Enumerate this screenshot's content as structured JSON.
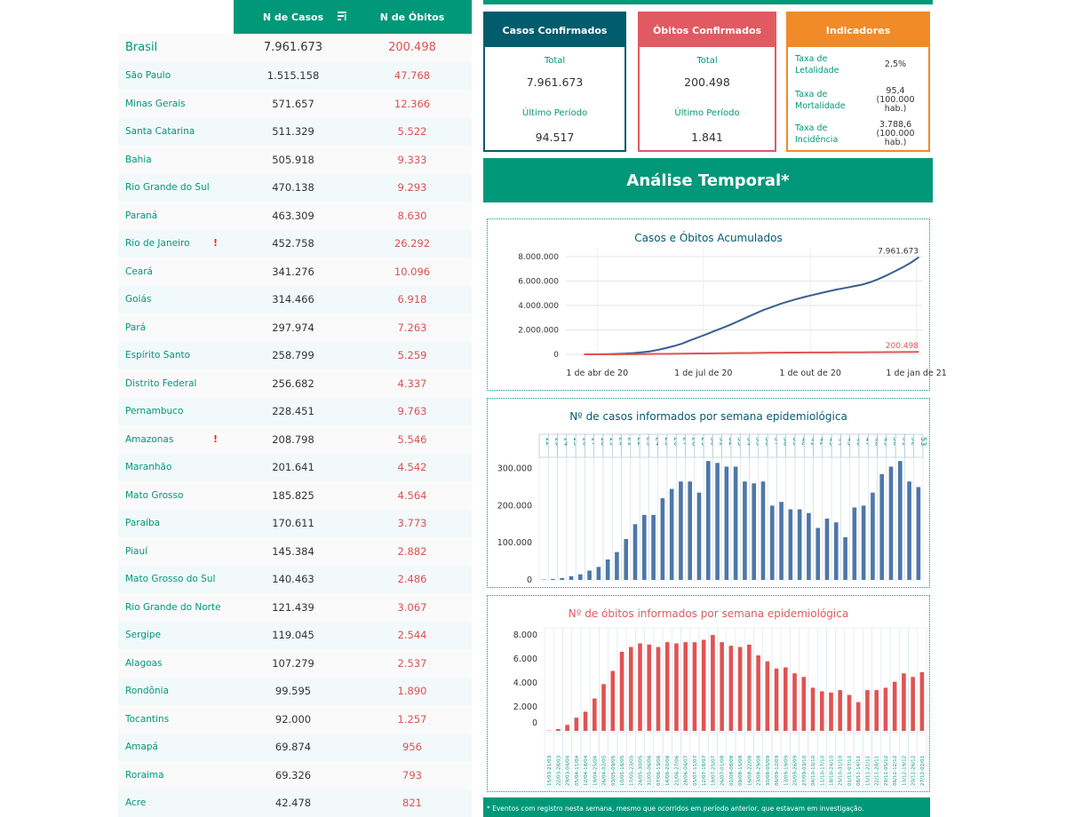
{
  "table": {
    "header_casos": "N de Casos",
    "header_obitos": "N de Óbitos",
    "rows": [
      {
        "name": "Brasil",
        "casos": "7.961.673",
        "obitos": "200.498",
        "warn": ""
      },
      {
        "name": "São Paulo",
        "casos": "1.515.158",
        "obitos": "47.768",
        "warn": ""
      },
      {
        "name": "Minas Gerais",
        "casos": "571.657",
        "obitos": "12.366",
        "warn": ""
      },
      {
        "name": "Santa Catarina",
        "casos": "511.329",
        "obitos": "5.522",
        "warn": ""
      },
      {
        "name": "Bahia",
        "casos": "505.918",
        "obitos": "9.333",
        "warn": ""
      },
      {
        "name": "Rio Grande do Sul",
        "casos": "470.138",
        "obitos": "9.293",
        "warn": ""
      },
      {
        "name": "Paraná",
        "casos": "463.309",
        "obitos": "8.630",
        "warn": ""
      },
      {
        "name": "Rio de Janeiro",
        "casos": "452.758",
        "obitos": "26.292",
        "warn": "!"
      },
      {
        "name": "Ceará",
        "casos": "341.276",
        "obitos": "10.096",
        "warn": ""
      },
      {
        "name": "Goiás",
        "casos": "314.466",
        "obitos": "6.918",
        "warn": ""
      },
      {
        "name": "Pará",
        "casos": "297.974",
        "obitos": "7.263",
        "warn": ""
      },
      {
        "name": "Espírito Santo",
        "casos": "258.799",
        "obitos": "5.259",
        "warn": ""
      },
      {
        "name": "Distrito Federal",
        "casos": "256.682",
        "obitos": "4.337",
        "warn": ""
      },
      {
        "name": "Pernambuco",
        "casos": "228.451",
        "obitos": "9.763",
        "warn": ""
      },
      {
        "name": "Amazonas",
        "casos": "208.798",
        "obitos": "5.546",
        "warn": "!"
      },
      {
        "name": "Maranhão",
        "casos": "201.641",
        "obitos": "4.542",
        "warn": ""
      },
      {
        "name": "Mato Grosso",
        "casos": "185.825",
        "obitos": "4.564",
        "warn": ""
      },
      {
        "name": "Paraíba",
        "casos": "170.611",
        "obitos": "3.773",
        "warn": ""
      },
      {
        "name": "Piauí",
        "casos": "145.384",
        "obitos": "2.882",
        "warn": ""
      },
      {
        "name": "Mato Grosso do Sul",
        "casos": "140.463",
        "obitos": "2.486",
        "warn": ""
      },
      {
        "name": "Rio Grande do Norte",
        "casos": "121.439",
        "obitos": "3.067",
        "warn": ""
      },
      {
        "name": "Sergipe",
        "casos": "119.045",
        "obitos": "2.544",
        "warn": ""
      },
      {
        "name": "Alagoas",
        "casos": "107.279",
        "obitos": "2.537",
        "warn": ""
      },
      {
        "name": "Rondônia",
        "casos": "99.595",
        "obitos": "1.890",
        "warn": ""
      },
      {
        "name": "Tocantins",
        "casos": "92.000",
        "obitos": "1.257",
        "warn": ""
      },
      {
        "name": "Amapá",
        "casos": "69.874",
        "obitos": "956",
        "warn": ""
      },
      {
        "name": "Roraima",
        "casos": "69.326",
        "obitos": "793",
        "warn": ""
      },
      {
        "name": "Acre",
        "casos": "42.478",
        "obitos": "821",
        "warn": ""
      }
    ]
  },
  "cards": {
    "casos": {
      "title": "Casos Confirmados",
      "total_label": "Total",
      "total": "7.961.673",
      "periodo_label": "Último Período",
      "periodo": "94.517"
    },
    "obitos": {
      "title": "Óbitos Confirmados",
      "total_label": "Total",
      "total": "200.498",
      "periodo_label": "Último Período",
      "periodo": "1.841"
    },
    "indicadores": {
      "title": "Indicadores",
      "rows": [
        {
          "label": "Taxa de Letalidade",
          "value": "2,5%"
        },
        {
          "label": "Taxa de Mortalidade",
          "value": "95,4 (100.000 hab.)"
        },
        {
          "label": "Taxa de Incidência",
          "value": "3.788,6 (100.000 hab.)"
        }
      ]
    }
  },
  "temporal_title": "Análise Temporal*",
  "footnote": "* Eventos com registro nesta semana, mesmo que ocorridos em período anterior, que estavam em investigação.",
  "colors": {
    "teal": "#009879",
    "navy": "#015c6e",
    "red": "#e15a61",
    "orange": "#f08b28",
    "blue_line": "#3a5d91",
    "bar_blue": "#4e77a8",
    "bar_red": "#e05353"
  },
  "chart_data": [
    {
      "type": "line",
      "title": "Casos e Óbitos Acumulados",
      "x_ticks": [
        "1 de abr de 20",
        "1 de jul de 20",
        "1 de out de 20",
        "1 de jan de 21"
      ],
      "y_ticks": [
        "8.000.000",
        "6.000.000",
        "4.000.000",
        "2.000.000",
        "0"
      ],
      "ylim": [
        0,
        8000000
      ],
      "x_weeks": [
        12,
        13,
        14,
        15,
        16,
        17,
        18,
        19,
        20,
        21,
        22,
        23,
        24,
        25,
        26,
        27,
        28,
        29,
        30,
        31,
        32,
        33,
        34,
        35,
        36,
        37,
        38,
        39,
        40,
        41,
        42,
        43,
        44,
        45,
        46,
        47,
        48,
        49,
        50,
        51,
        52,
        53
      ],
      "series": [
        {
          "values": [
            1500,
            4000,
            9000,
            20000,
            36000,
            60000,
            100000,
            160000,
            240000,
            360000,
            510000,
            680000,
            880000,
            1150000,
            1400000,
            1650000,
            1920000,
            2180000,
            2450000,
            2750000,
            3050000,
            3350000,
            3640000,
            3880000,
            4120000,
            4330000,
            4520000,
            4700000,
            4860000,
            5020000,
            5170000,
            5320000,
            5440000,
            5570000,
            5700000,
            5900000,
            6150000,
            6450000,
            6780000,
            7120000,
            7500000,
            7961673
          ],
          "end_label": "7.961.673"
        },
        {
          "values": [
            30,
            150,
            600,
            1800,
            4500,
            8000,
            12000,
            18000,
            25000,
            33000,
            40000,
            47000,
            55000,
            62000,
            69000,
            76000,
            83000,
            91000,
            99000,
            106000,
            113000,
            120000,
            127000,
            133000,
            138000,
            143000,
            147000,
            150000,
            153000,
            155500,
            157500,
            160000,
            161500,
            163000,
            165000,
            169000,
            173000,
            178000,
            183000,
            188000,
            195000,
            200498
          ],
          "end_label": "200.498"
        }
      ]
    },
    {
      "type": "bar",
      "title": "Nº de casos informados por semana epidemiológica",
      "categories": [
        "12",
        "13",
        "14",
        "15",
        "16",
        "17",
        "18",
        "19",
        "20",
        "21",
        "22",
        "23",
        "24",
        "25",
        "26",
        "27",
        "28",
        "29",
        "30",
        "31",
        "32",
        "33",
        "34",
        "35",
        "36",
        "37",
        "38",
        "39",
        "40",
        "41",
        "42",
        "43",
        "44",
        "45",
        "46",
        "47",
        "48",
        "49",
        "50",
        "51",
        "52",
        "53"
      ],
      "values": [
        1000,
        2500,
        5000,
        10000,
        15000,
        25000,
        35000,
        55000,
        75000,
        110000,
        150000,
        175000,
        175000,
        220000,
        245000,
        265000,
        265000,
        235000,
        320000,
        315000,
        305000,
        305000,
        265000,
        260000,
        265000,
        200000,
        210000,
        190000,
        190000,
        180000,
        140000,
        165000,
        155000,
        115000,
        195000,
        200000,
        235000,
        285000,
        305000,
        320000,
        265000,
        250000
      ],
      "y_ticks": [
        "300.000",
        "200.000",
        "100.000",
        "0"
      ],
      "ylim": [
        0,
        330000
      ]
    },
    {
      "type": "bar",
      "title": "Nº de óbitos informados por semana epidemiológica",
      "categories": [
        "15/03-21/03",
        "22/03-28/03",
        "29/03-04/04",
        "05/04-11/04",
        "12/04-18/04",
        "19/04-25/04",
        "26/04-02/05",
        "03/05-09/05",
        "10/05-16/05",
        "17/05-23/05",
        "24/05-30/05",
        "31/05-06/06",
        "07/06-13/06",
        "14/06-20/06",
        "21/06-27/06",
        "28/06-04/07",
        "05/07-11/07",
        "12/07-18/07",
        "19/07-25/07",
        "26/07-01/08",
        "02/08-08/08",
        "09/08-15/08",
        "16/08-22/08",
        "23/08-29/08",
        "30/08-05/09",
        "06/09-12/09",
        "13/09-19/09",
        "20/09-26/09",
        "27/09-03/10",
        "04/10-10/10",
        "11/10-17/10",
        "18/10-24/10",
        "25/10-31/10",
        "01/11-07/11",
        "08/11-14/11",
        "15/11-21/11",
        "22/11-28/11",
        "29/11-05/12",
        "06/12-12/12",
        "13/12-19/12",
        "20/12-26/12",
        "27/12-02/01"
      ],
      "values": [
        25,
        150,
        500,
        1100,
        1600,
        2700,
        3900,
        5000,
        6600,
        7000,
        7300,
        7200,
        7000,
        7400,
        7300,
        7400,
        7400,
        7600,
        8000,
        7400,
        7100,
        7000,
        7200,
        6300,
        5800,
        5200,
        5300,
        4800,
        4500,
        3600,
        3300,
        3200,
        3400,
        3000,
        2400,
        3400,
        3400,
        3600,
        4100,
        4800,
        4500,
        4900
      ],
      "y_ticks": [
        "8.000",
        "6.000",
        "4.000",
        "2.000",
        "0"
      ],
      "ylim": [
        0,
        8300
      ]
    }
  ]
}
